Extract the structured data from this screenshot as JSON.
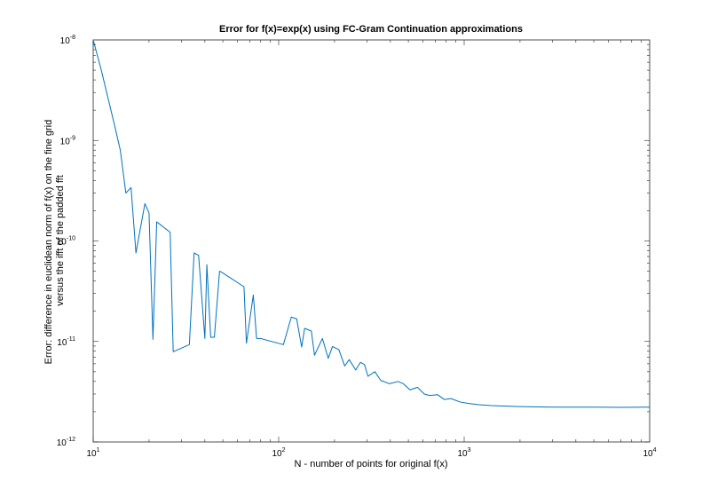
{
  "chart_data": {
    "type": "line",
    "title": "Error for f(x)=exp(x) using FC-Gram Continuation approximations",
    "xlabel": "N - number of points for original f(x)",
    "ylabel_line1": "Error: difference in euclidean norm of f(x) on the fine grid",
    "ylabel_line2": "versus the ifft of the padded fft",
    "xscale": "log",
    "yscale": "log",
    "xlim": [
      10,
      10000
    ],
    "ylim": [
      1e-12,
      1e-08
    ],
    "x_ticks": [
      {
        "base": "10",
        "exp": "1",
        "value": 10
      },
      {
        "base": "10",
        "exp": "2",
        "value": 100
      },
      {
        "base": "10",
        "exp": "3",
        "value": 1000
      },
      {
        "base": "10",
        "exp": "4",
        "value": 10000
      }
    ],
    "y_ticks": [
      {
        "base": "10",
        "exp": "-8",
        "value": 1e-08
      },
      {
        "base": "10",
        "exp": "-9",
        "value": 1e-09
      },
      {
        "base": "10",
        "exp": "-10",
        "value": 1e-10
      },
      {
        "base": "10",
        "exp": "-11",
        "value": 1e-11
      },
      {
        "base": "10",
        "exp": "-12",
        "value": 1e-12
      }
    ],
    "grid": false,
    "line_color": "#0072BD",
    "series": [
      {
        "x": [
          10,
          11,
          13,
          14,
          15,
          16,
          17,
          19,
          20,
          21,
          22,
          26,
          27,
          33,
          35,
          37,
          40,
          41,
          43,
          45,
          48,
          50,
          65,
          67,
          73,
          76,
          80,
          106,
          117,
          125,
          133,
          138,
          150,
          156,
          172,
          185,
          195,
          211,
          227,
          240,
          260,
          276,
          290,
          303,
          330,
          355,
          395,
          440,
          470,
          510,
          560,
          610,
          650,
          720,
          780,
          850,
          950,
          1050,
          1200,
          1400,
          1700,
          2000,
          3000,
          5000,
          7000,
          10000
        ],
        "y": [
          1e-08,
          5.2e-09,
          1.45e-09,
          8e-10,
          3e-10,
          3.4e-10,
          7.6e-11,
          2.35e-10,
          1.9e-10,
          1.05e-11,
          1.55e-10,
          1.22e-10,
          7.9e-12,
          9.3e-12,
          7.6e-11,
          7.2e-11,
          1.07e-11,
          5.8e-11,
          1.1e-11,
          1.1e-11,
          5e-11,
          4.8e-11,
          3.5e-11,
          9.6e-12,
          2.9e-11,
          1.07e-11,
          1.07e-11,
          9.3e-12,
          1.75e-11,
          1.68e-11,
          8.8e-12,
          1.35e-11,
          1.27e-11,
          7.3e-12,
          1.07e-11,
          6.8e-12,
          8.9e-12,
          8.3e-12,
          5.7e-12,
          6.6e-12,
          5.2e-12,
          6.2e-12,
          5.9e-12,
          4.5e-12,
          5e-12,
          4.1e-12,
          3.8e-12,
          4e-12,
          3.8e-12,
          3.3e-12,
          3.5e-12,
          3e-12,
          2.9e-12,
          2.95e-12,
          2.65e-12,
          2.7e-12,
          2.5e-12,
          2.42e-12,
          2.35e-12,
          2.3e-12,
          2.27e-12,
          2.25e-12,
          2.22e-12,
          2.22e-12,
          2.21e-12,
          2.22e-12
        ]
      }
    ]
  }
}
